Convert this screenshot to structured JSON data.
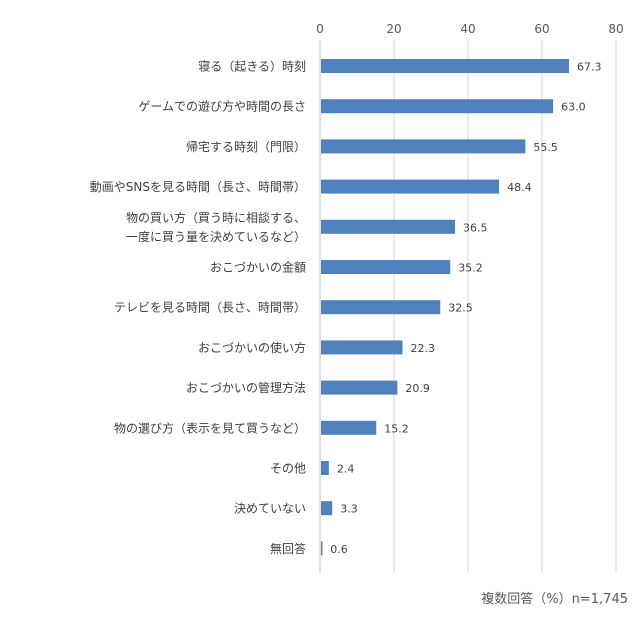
{
  "chart_data": {
    "type": "bar",
    "orientation": "horizontal",
    "categories": [
      [
        "寝る（起きる）時刻"
      ],
      [
        "ゲームでの遊び方や時間の長さ"
      ],
      [
        "帰宅する時刻（門限）"
      ],
      [
        "動画やSNSを見る時間（長さ、時間帯）"
      ],
      [
        "物の買い方（買う時に相談する、",
        "一度に買う量を決めているなど）"
      ],
      [
        "おこづかいの金額"
      ],
      [
        "テレビを見る時間（長さ、時間帯）"
      ],
      [
        "おこづかいの使い方"
      ],
      [
        "おこづかいの管理方法"
      ],
      [
        "物の選び方（表示を見て買うなど）"
      ],
      [
        "その他"
      ],
      [
        "決めていない"
      ],
      [
        "無回答"
      ]
    ],
    "values": [
      67.3,
      63.0,
      55.5,
      48.4,
      36.5,
      35.2,
      32.5,
      22.3,
      20.9,
      15.2,
      2.4,
      3.3,
      0.6
    ],
    "value_labels": [
      "67.3",
      "63.0",
      "55.5",
      "48.4",
      "36.5",
      "35.2",
      "32.5",
      "22.3",
      "20.9",
      "15.2",
      "2.4",
      "3.3",
      "0.6"
    ],
    "xlim": [
      0,
      80
    ],
    "xticks": [
      0,
      20,
      40,
      60,
      80
    ],
    "x_axis_position": "top",
    "grid": true,
    "bar_color": "#4f81bd",
    "note": "複数回答（%）n=1,745"
  }
}
